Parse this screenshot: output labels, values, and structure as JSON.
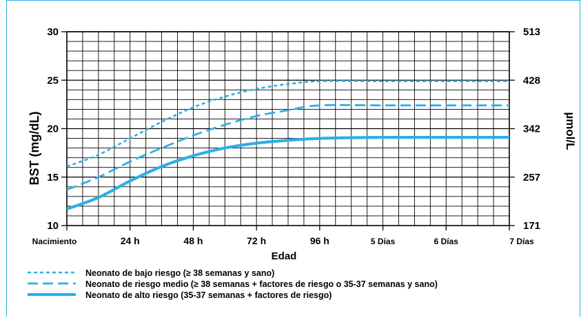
{
  "chart_data": {
    "type": "line",
    "title": "",
    "xlabel": "Edad",
    "ylabel": "BST (mg/dL)",
    "y2label": "µmol/L",
    "x_tick_labels": [
      "Nacimiento",
      "24 h",
      "48 h",
      "72 h",
      "96 h",
      "5 Días",
      "6 Días",
      "7 Días"
    ],
    "x_hours": [
      0,
      24,
      48,
      72,
      96,
      120,
      144,
      168
    ],
    "ylim": [
      10,
      30
    ],
    "y_ticks": [
      10,
      15,
      20,
      25,
      30
    ],
    "y2_ticks": [
      "171",
      "257",
      "342",
      "428",
      "513"
    ],
    "grid": true,
    "legend_position": "bottom",
    "series_color": "#2bb0e6",
    "series": [
      {
        "name": "Neonato de bajo riesgo (≥ 38 semanas y sano)",
        "style": "dotted",
        "points": [
          [
            0,
            16.1
          ],
          [
            12,
            17.3
          ],
          [
            24,
            19.0
          ],
          [
            36,
            20.7
          ],
          [
            48,
            22.2
          ],
          [
            60,
            23.3
          ],
          [
            72,
            24.1
          ],
          [
            84,
            24.6
          ],
          [
            96,
            24.9
          ],
          [
            120,
            24.9
          ],
          [
            144,
            24.9
          ],
          [
            168,
            24.9
          ]
        ]
      },
      {
        "name": "Neonato de riesgo medio (≥ 38 semanas + factores de riesgo o 35-37 semanas y sano)",
        "style": "dashed",
        "points": [
          [
            0,
            13.7
          ],
          [
            12,
            15.0
          ],
          [
            24,
            16.6
          ],
          [
            36,
            18.0
          ],
          [
            48,
            19.3
          ],
          [
            60,
            20.4
          ],
          [
            72,
            21.3
          ],
          [
            84,
            21.9
          ],
          [
            96,
            22.4
          ],
          [
            120,
            22.4
          ],
          [
            144,
            22.4
          ],
          [
            168,
            22.4
          ]
        ]
      },
      {
        "name": "Neonato de alto riesgo (35-37 semanas + factores de riesgo)",
        "style": "solid",
        "points": [
          [
            0,
            11.7
          ],
          [
            12,
            12.9
          ],
          [
            24,
            14.6
          ],
          [
            36,
            16.1
          ],
          [
            48,
            17.2
          ],
          [
            60,
            18.0
          ],
          [
            72,
            18.5
          ],
          [
            84,
            18.8
          ],
          [
            96,
            19.0
          ],
          [
            120,
            19.1
          ],
          [
            144,
            19.1
          ],
          [
            168,
            19.1
          ]
        ]
      }
    ]
  }
}
